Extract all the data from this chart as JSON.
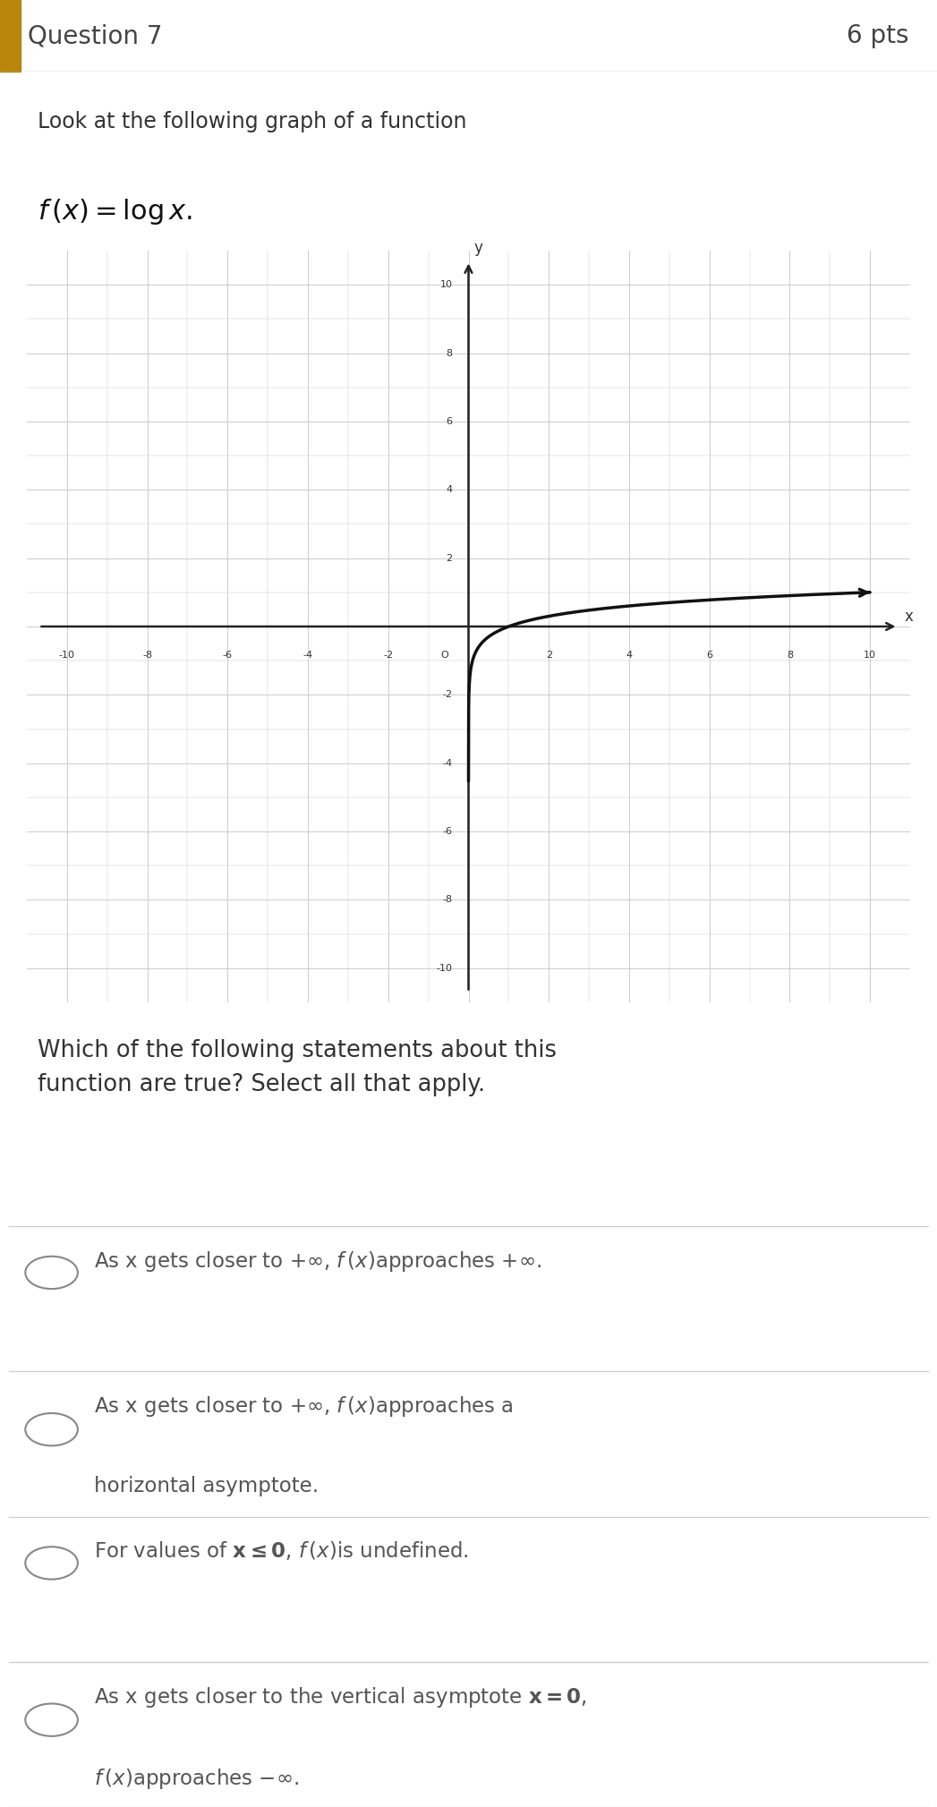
{
  "header_text": "Question 7",
  "header_pts": "6 pts",
  "header_bg": "#f0f0f0",
  "header_bar_color": "#b8860b",
  "page_bg": "#ffffff",
  "intro_text": "Look at the following graph of a function",
  "function_label": "$f\\,(x) = \\log x.$",
  "graph_bg": "#ffffff",
  "graph_border_color": "#aaaaaa",
  "grid_color": "#cccccc",
  "axis_color": "#222222",
  "curve_color": "#111111",
  "question_text": "Which of the following statements about this\nfunction are true? Select all that apply.",
  "options_line1": [
    "As x gets closer to $+\\infty$, $f\\,(x)$approaches $+\\infty$.",
    "As x gets closer to $+\\infty$, $f\\,(x)$approaches a",
    "For values of $\\mathbf{x \\leq 0}$, $f\\,(x)$is undefined.",
    "As x gets closer to the vertical asymptote $\\mathbf{x = 0}$,"
  ],
  "options_line2": [
    "",
    "horizontal asymptote.",
    "",
    "$f\\,(x)$approaches $-\\infty$."
  ],
  "circle_color": "#888888",
  "option_text_color": "#555555",
  "separator_color": "#cccccc",
  "tick_label_color": "#333333",
  "axis_label_color": "#333333",
  "text_color_dark": "#333333",
  "function_color": "#111111"
}
